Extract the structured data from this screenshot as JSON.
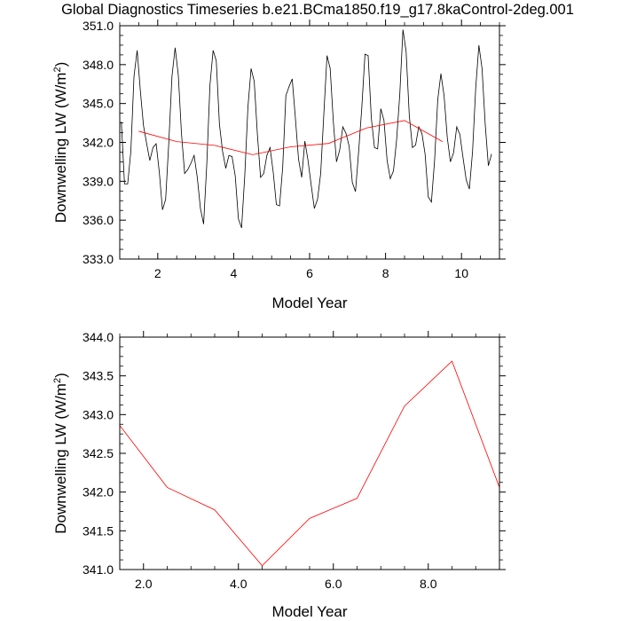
{
  "title": "Global Diagnostics Timeseries b.e21.BCma1850.f19_g17.8kaControl-2deg.001",
  "chart_data": [
    {
      "type": "line",
      "xlabel": "Model Year",
      "ylabel_main": "Downwelling LW (W/m",
      "ylabel_sup": "2",
      "ylabel_close": ")",
      "xlim": [
        1.0,
        11.0
      ],
      "ylim": [
        333.0,
        351.0
      ],
      "xticks": [
        2,
        4,
        6,
        8,
        10
      ],
      "xtick_labels": [
        "2",
        "4",
        "6",
        "8",
        "10"
      ],
      "yticks": [
        333,
        336,
        339,
        342,
        345,
        348,
        351
      ],
      "ytick_labels": [
        "333.0",
        "336.0",
        "339.0",
        "342.0",
        "345.0",
        "348.0",
        "351.0"
      ],
      "series": [
        {
          "color": "#000000",
          "x_start": 1.0417,
          "x_step": 0.08333,
          "values": [
            343.6,
            338.8,
            338.8,
            341.3,
            347.1,
            349.1,
            346.0,
            343.3,
            341.9,
            340.6,
            341.6,
            341.9,
            339.7,
            336.8,
            337.6,
            342.0,
            347.1,
            349.3,
            347.2,
            342.7,
            339.6,
            339.9,
            340.4,
            341.0,
            339.3,
            336.9,
            335.7,
            340.3,
            346.4,
            349.1,
            348.3,
            343.4,
            341.3,
            340.0,
            341.0,
            340.9,
            339.4,
            336.1,
            335.4,
            339.4,
            344.7,
            347.7,
            346.7,
            342.6,
            339.3,
            339.6,
            341.0,
            341.6,
            339.7,
            337.2,
            337.1,
            340.1,
            345.6,
            346.3,
            346.9,
            343.9,
            340.7,
            339.3,
            342.1,
            340.6,
            338.7,
            336.9,
            337.6,
            339.6,
            344.2,
            348.7,
            347.7,
            343.6,
            340.5,
            341.4,
            343.2,
            342.7,
            341.7,
            338.9,
            338.2,
            341.3,
            344.7,
            348.8,
            348.7,
            343.9,
            341.6,
            341.5,
            344.6,
            343.7,
            340.6,
            339.2,
            339.8,
            342.2,
            345.7,
            350.7,
            349.0,
            344.1,
            341.6,
            341.8,
            343.2,
            342.7,
            341.1,
            337.8,
            337.4,
            340.6,
            345.3,
            347.3,
            345.6,
            342.4,
            340.5,
            341.2,
            343.2,
            342.6,
            340.8,
            339.1,
            338.4,
            341.3,
            346.2,
            349.5,
            347.7,
            343.4,
            340.2,
            341.1
          ]
        },
        {
          "color": "#ff0000",
          "x": [
            1.5,
            2.5,
            3.5,
            4.5,
            5.5,
            6.5,
            7.5,
            8.5,
            9.5
          ],
          "values": [
            342.86,
            342.06,
            341.77,
            341.05,
            341.66,
            341.92,
            343.11,
            343.69,
            342.06
          ]
        }
      ]
    },
    {
      "type": "line",
      "xlabel": "Model Year",
      "ylabel_main": "Downwelling LW (W/m",
      "ylabel_sup": "2",
      "ylabel_close": ")",
      "xlim": [
        1.5,
        9.5
      ],
      "ylim": [
        341.0,
        344.0
      ],
      "xticks": [
        2.0,
        4.0,
        6.0,
        8.0
      ],
      "xtick_labels": [
        "2.0",
        "4.0",
        "6.0",
        "8.0"
      ],
      "yticks": [
        341.0,
        341.5,
        342.0,
        342.5,
        343.0,
        343.5,
        344.0
      ],
      "ytick_labels": [
        "341.0",
        "341.5",
        "342.0",
        "342.5",
        "343.0",
        "343.5",
        "344.0"
      ],
      "series": [
        {
          "color": "#ff0000",
          "x": [
            1.5,
            2.5,
            3.5,
            4.5,
            5.5,
            6.5,
            7.5,
            8.5,
            9.5
          ],
          "values": [
            342.86,
            342.06,
            341.77,
            341.05,
            341.66,
            341.92,
            343.11,
            343.69,
            342.06
          ]
        }
      ]
    }
  ]
}
